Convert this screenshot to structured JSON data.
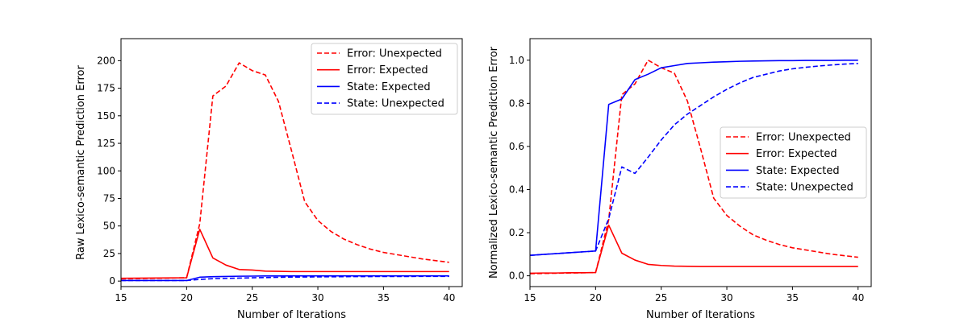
{
  "chart_data": [
    {
      "type": "line",
      "title": "",
      "xlabel": "Number of Iterations",
      "ylabel": "Raw Lexico-semantic Prediction Error",
      "xlim": [
        15,
        41
      ],
      "ylim": [
        -5,
        220
      ],
      "xticks": [
        15,
        20,
        25,
        30,
        35,
        40
      ],
      "yticks": [
        0,
        25,
        50,
        75,
        100,
        125,
        150,
        175,
        200
      ],
      "grid": false,
      "legend_position": "top-right",
      "x": [
        15,
        16,
        17,
        18,
        19,
        20,
        21,
        22,
        23,
        24,
        25,
        26,
        27,
        28,
        29,
        30,
        31,
        32,
        33,
        34,
        35,
        36,
        37,
        38,
        39,
        40
      ],
      "series": [
        {
          "name": "Error: Unexpected",
          "color": "#ff0000",
          "dash": "dashed",
          "values": [
            2,
            2.2,
            2.4,
            2.6,
            2.8,
            3,
            52,
            168,
            177,
            198,
            191,
            187,
            163,
            118,
            72,
            55,
            45,
            38,
            33,
            29,
            26,
            24,
            22,
            20,
            18.5,
            17
          ]
        },
        {
          "name": "Error: Expected",
          "color": "#ff0000",
          "dash": "solid",
          "values": [
            2.5,
            2.6,
            2.7,
            2.8,
            2.9,
            3,
            47,
            21,
            14.5,
            10.5,
            10,
            9,
            8.8,
            8.6,
            8.6,
            8.6,
            8.6,
            8.6,
            8.6,
            8.6,
            8.6,
            8.6,
            8.6,
            8.6,
            8.6,
            8.6
          ]
        },
        {
          "name": "State: Expected",
          "color": "#0000ff",
          "dash": "solid",
          "values": [
            0.5,
            0.5,
            0.5,
            0.5,
            0.5,
            0.5,
            3.5,
            4,
            4.2,
            4.4,
            4.5,
            4.6,
            4.6,
            4.7,
            4.7,
            4.7,
            4.7,
            4.7,
            4.7,
            4.7,
            4.7,
            4.7,
            4.7,
            4.7,
            4.7,
            4.7
          ]
        },
        {
          "name": "State: Unexpected",
          "color": "#0000ff",
          "dash": "dashed",
          "values": [
            0.5,
            0.5,
            0.5,
            0.5,
            0.5,
            0.5,
            1.5,
            2.2,
            2.4,
            2.7,
            3,
            3.2,
            3.4,
            3.6,
            3.7,
            3.8,
            3.9,
            4,
            4.1,
            4.1,
            4.2,
            4.2,
            4.2,
            4.3,
            4.3,
            4.3
          ]
        }
      ]
    },
    {
      "type": "line",
      "title": "",
      "xlabel": "Number of Iterations",
      "ylabel": "Normalized Lexico-semantic Prediction Error",
      "xlim": [
        15,
        41
      ],
      "ylim": [
        -0.05,
        1.1
      ],
      "xticks": [
        15,
        20,
        25,
        30,
        35,
        40
      ],
      "yticks": [
        0.0,
        0.2,
        0.4,
        0.6,
        0.8,
        1.0
      ],
      "ytick_labels": [
        "0.0",
        "0.2",
        "0.4",
        "0.6",
        "0.8",
        "1.0"
      ],
      "grid": false,
      "legend_position": "center-right",
      "x": [
        15,
        16,
        17,
        18,
        19,
        20,
        21,
        22,
        23,
        24,
        25,
        26,
        27,
        28,
        29,
        30,
        31,
        32,
        33,
        34,
        35,
        36,
        37,
        38,
        39,
        40
      ],
      "series": [
        {
          "name": "Error: Unexpected",
          "color": "#ff0000",
          "dash": "dashed",
          "values": [
            0.01,
            0.011,
            0.012,
            0.013,
            0.014,
            0.015,
            0.26,
            0.84,
            0.89,
            1.0,
            0.965,
            0.94,
            0.81,
            0.59,
            0.36,
            0.28,
            0.23,
            0.19,
            0.165,
            0.145,
            0.13,
            0.12,
            0.11,
            0.1,
            0.093,
            0.086
          ]
        },
        {
          "name": "Error: Expected",
          "color": "#ff0000",
          "dash": "solid",
          "values": [
            0.012,
            0.013,
            0.013,
            0.014,
            0.014,
            0.015,
            0.235,
            0.105,
            0.073,
            0.053,
            0.048,
            0.045,
            0.044,
            0.043,
            0.043,
            0.043,
            0.043,
            0.043,
            0.043,
            0.043,
            0.043,
            0.043,
            0.043,
            0.043,
            0.043,
            0.043
          ]
        },
        {
          "name": "State: Expected",
          "color": "#0000ff",
          "dash": "solid",
          "values": [
            0.095,
            0.099,
            0.103,
            0.107,
            0.111,
            0.115,
            0.795,
            0.82,
            0.91,
            0.935,
            0.965,
            0.975,
            0.985,
            0.988,
            0.991,
            0.993,
            0.995,
            0.996,
            0.997,
            0.998,
            0.998,
            0.999,
            0.999,
            0.999,
            1.0,
            1.0
          ]
        },
        {
          "name": "State: Unexpected",
          "color": "#0000ff",
          "dash": "dashed",
          "values": [
            0.095,
            0.099,
            0.103,
            0.107,
            0.111,
            0.115,
            0.265,
            0.505,
            0.475,
            0.55,
            0.63,
            0.7,
            0.75,
            0.79,
            0.83,
            0.865,
            0.895,
            0.92,
            0.935,
            0.95,
            0.96,
            0.967,
            0.973,
            0.978,
            0.982,
            0.985
          ]
        }
      ]
    }
  ]
}
